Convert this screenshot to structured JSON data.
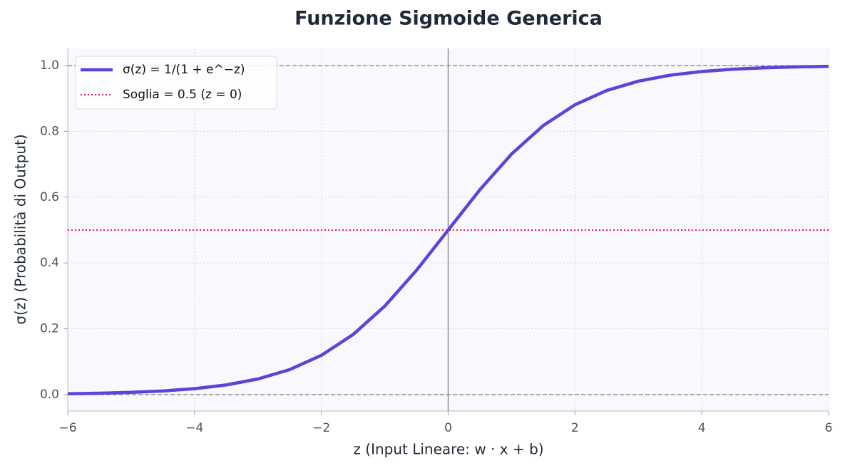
{
  "chart_data": {
    "type": "line",
    "title": "Funzione Sigmoide Generica",
    "x_label": "z (Input Lineare: w · x + b)",
    "y_label": "σ(z) (Probabilità di Output)",
    "x": [
      -6,
      -5.5,
      -5,
      -4.5,
      -4,
      -3.5,
      -3,
      -2.5,
      -2,
      -1.5,
      -1,
      -0.5,
      0,
      0.5,
      1,
      1.5,
      2,
      2.5,
      3,
      3.5,
      4,
      4.5,
      5,
      5.5,
      6
    ],
    "series": [
      {
        "name": "σ(z) = 1/(1 + e^−z)",
        "color": "#5e43d8",
        "values": [
          0.0025,
          0.0041,
          0.0067,
          0.011,
          0.018,
          0.0293,
          0.0474,
          0.0759,
          0.1192,
          0.1824,
          0.2689,
          0.3775,
          0.5,
          0.6225,
          0.7311,
          0.8176,
          0.8808,
          0.9241,
          0.9526,
          0.9707,
          0.982,
          0.989,
          0.9933,
          0.9959,
          0.9975
        ]
      }
    ],
    "threshold": {
      "name": "Soglia = 0.5 (z = 0)",
      "value": 0.5,
      "color": "#e11d48"
    },
    "reference_lines": {
      "y": [
        0,
        1
      ],
      "x": [
        0
      ]
    },
    "xlim": [
      -6,
      6
    ],
    "ylim": [
      -0.05,
      1.052
    ],
    "xticks": [
      {
        "value": -6,
        "label": "−6"
      },
      {
        "value": -4,
        "label": "−4"
      },
      {
        "value": -2,
        "label": "−2"
      },
      0,
      2,
      4,
      6
    ],
    "yticks": [
      {
        "value": 0,
        "label": "0.0"
      },
      0.2,
      0.4,
      0.6,
      0.8,
      {
        "value": 1,
        "label": "1.0"
      }
    ],
    "grid": true,
    "legend": "upper left"
  }
}
